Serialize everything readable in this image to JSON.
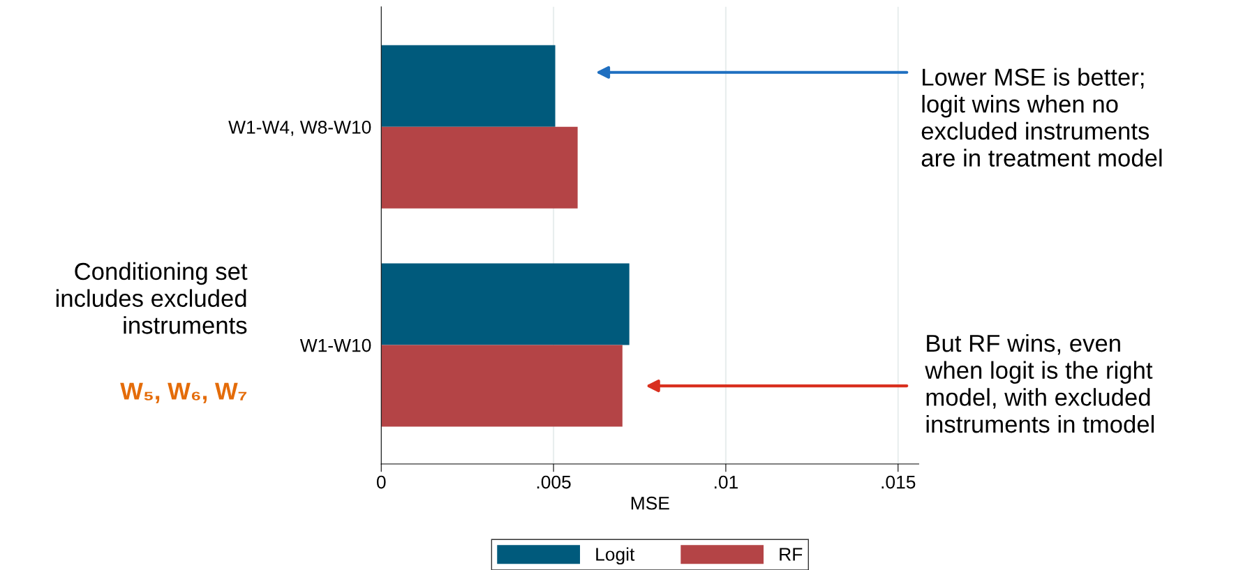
{
  "chart_data": {
    "type": "bar",
    "orientation": "horizontal",
    "xlabel": "MSE",
    "categories": [
      "W1-W4, W8-W10",
      "W1-W10"
    ],
    "series": [
      {
        "name": "Logit",
        "color": "#005a7c",
        "values": [
          0.00505,
          0.0072
        ]
      },
      {
        "name": "RF",
        "color": "#b44446",
        "values": [
          0.0057,
          0.007
        ]
      }
    ],
    "xlim": [
      0,
      0.0156
    ],
    "xticks": [
      0,
      {
        "value": 0.005,
        "label": ".005"
      },
      {
        "value": 0.01,
        "label": ".01"
      },
      {
        "value": 0.015,
        "label": ".015"
      }
    ],
    "grid": "x",
    "legend": "bottom",
    "annotations": [
      "Lower MSE is better;\nlogit wins when no\nexcluded instruments\nare in treatment model",
      "But RF wins, even\nwhen logit is the right\nmodel, with excluded\ninstruments in tmodel",
      "Conditioning set\nincludes excluded\ninstruments",
      "W₅, W₆, W₇"
    ]
  }
}
